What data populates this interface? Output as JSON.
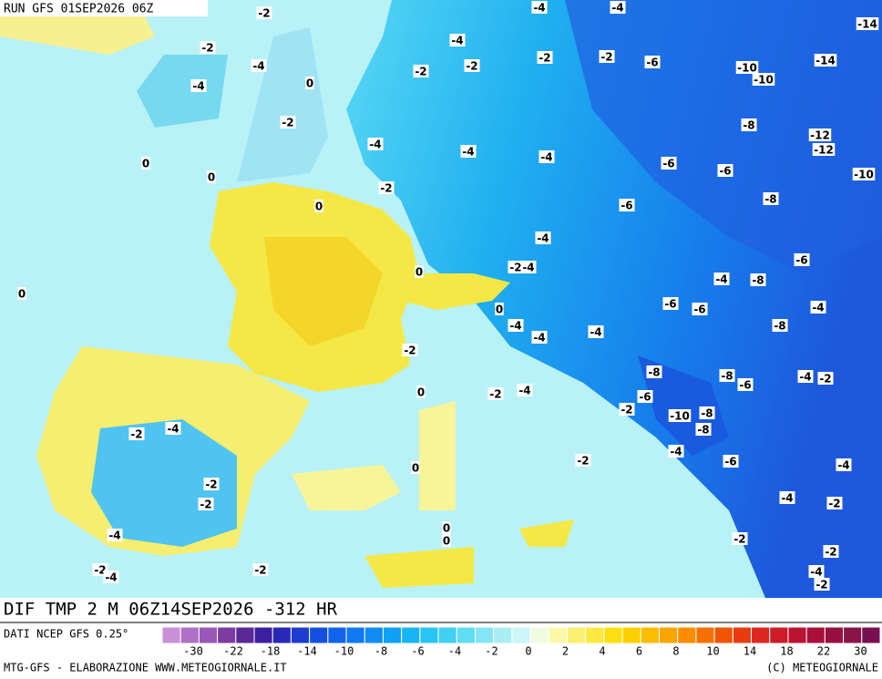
{
  "header": {
    "run": "RUN GFS 01SEP2026 06Z"
  },
  "map": {
    "labels": [
      "-2",
      "-4",
      "-4",
      "-14",
      "-2",
      "-4",
      "-4",
      "-2",
      "-2",
      "-2",
      "-2",
      "-6",
      "-10",
      "-14",
      "-10",
      "-4",
      "0",
      "-2",
      "-8",
      "-4",
      "-4",
      "-4",
      "-12",
      "-12",
      "0",
      "-6",
      "-6",
      "-10",
      "0",
      "-2",
      "0",
      "-6",
      "-8",
      "-4",
      "-6",
      "0",
      "-2",
      "-4",
      "-4",
      "-8",
      "0",
      "-4",
      "0",
      "-6",
      "-6",
      "-4",
      "-4",
      "-8",
      "-4",
      "-2",
      "-8",
      "-8",
      "-6",
      "-4",
      "-2",
      "0",
      "-2",
      "-4",
      "-6",
      "-2",
      "-10",
      "-8",
      "-8",
      "-2",
      "-4",
      "-4",
      "-2",
      "-6",
      "0",
      "-4",
      "-2",
      "-2",
      "-4",
      "-2",
      "-4",
      "0",
      "0",
      "-2",
      "-2",
      "-2",
      "-4",
      "-2",
      "-4",
      "-2"
    ]
  },
  "footer": {
    "field": "DIF TMP 2 M 06Z14SEP2026 -312 HR",
    "source": "DATI NCEP GFS 0.25°",
    "credit_left": "MTG-GFS - ELABORAZIONE WWW.METEOGIORNALE.IT",
    "credit_right": "(C) METEOGIORNALE"
  },
  "legend": {
    "ticks": [
      "-30",
      "-22",
      "-18",
      "-14",
      "-10",
      "-8",
      "-6",
      "-4",
      "-2",
      "0",
      "2",
      "4",
      "6",
      "8",
      "10",
      "14",
      "18",
      "22",
      "30"
    ],
    "colors": [
      "#c890d8",
      "#b070c8",
      "#9858b8",
      "#7c3ca4",
      "#5a2898",
      "#3c20a0",
      "#2828b8",
      "#1e3cd0",
      "#1450e0",
      "#1064ec",
      "#1078f0",
      "#108cf4",
      "#10a0f4",
      "#18b4f4",
      "#28c4f4",
      "#40d0f4",
      "#60dcf4",
      "#84e6f4",
      "#a8eef4",
      "#ccf6f8",
      "#f0fce0",
      "#fcf8a8",
      "#fcf070",
      "#fce840",
      "#fce010",
      "#fcd000",
      "#fcbc00",
      "#fca400",
      "#fc8c00",
      "#f87000",
      "#f05400",
      "#e83c10",
      "#dc2820",
      "#cc1c28",
      "#bc1430",
      "#a81038",
      "#981040",
      "#881448",
      "#781050"
    ]
  }
}
